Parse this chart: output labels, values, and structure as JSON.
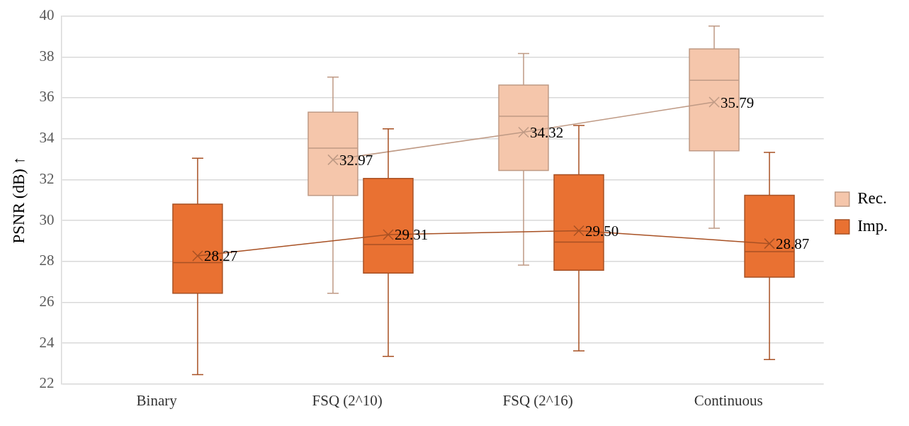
{
  "chart_data": {
    "type": "box",
    "ylabel": "PSNR (dB) ↑",
    "categories": [
      "Binary",
      "FSQ (2^10)",
      "FSQ (2^16)",
      "Continuous"
    ],
    "ylim": [
      22,
      40
    ],
    "yticks": [
      22,
      24,
      26,
      28,
      30,
      32,
      34,
      36,
      38,
      40
    ],
    "grid": "y",
    "legend": "right",
    "marker": "cross",
    "series": [
      {
        "name": "Rec.",
        "color": "#f5c6ab",
        "line_style": "solid",
        "value_labels": [
          null,
          "32.97",
          "34.32",
          "35.79"
        ],
        "boxes": [
          null,
          {
            "low": 26.44,
            "q1": 31.22,
            "median": 33.54,
            "q3": 35.3,
            "high": 37.01,
            "mean": 32.97
          },
          {
            "low": 27.82,
            "q1": 32.45,
            "median": 35.1,
            "q3": 36.62,
            "high": 38.17,
            "mean": 34.32
          },
          {
            "low": 29.62,
            "q1": 33.41,
            "median": 36.86,
            "q3": 38.39,
            "high": 39.51,
            "mean": 35.79
          }
        ]
      },
      {
        "name": "Imp.",
        "color": "#e97132",
        "line_style": "solid",
        "value_labels": [
          "28.27",
          "29.31",
          "29.50",
          "28.87"
        ],
        "boxes": [
          {
            "low": 22.46,
            "q1": 26.44,
            "median": 27.94,
            "q3": 30.8,
            "high": 33.04,
            "mean": 28.27
          },
          {
            "low": 23.35,
            "q1": 27.43,
            "median": 28.82,
            "q3": 32.06,
            "high": 34.48,
            "mean": 29.31
          },
          {
            "low": 23.62,
            "q1": 27.57,
            "median": 28.94,
            "q3": 32.24,
            "high": 34.65,
            "mean": 29.5
          },
          {
            "low": 23.2,
            "q1": 27.23,
            "median": 28.48,
            "q3": 31.23,
            "high": 33.33,
            "mean": 28.87
          }
        ]
      }
    ]
  }
}
